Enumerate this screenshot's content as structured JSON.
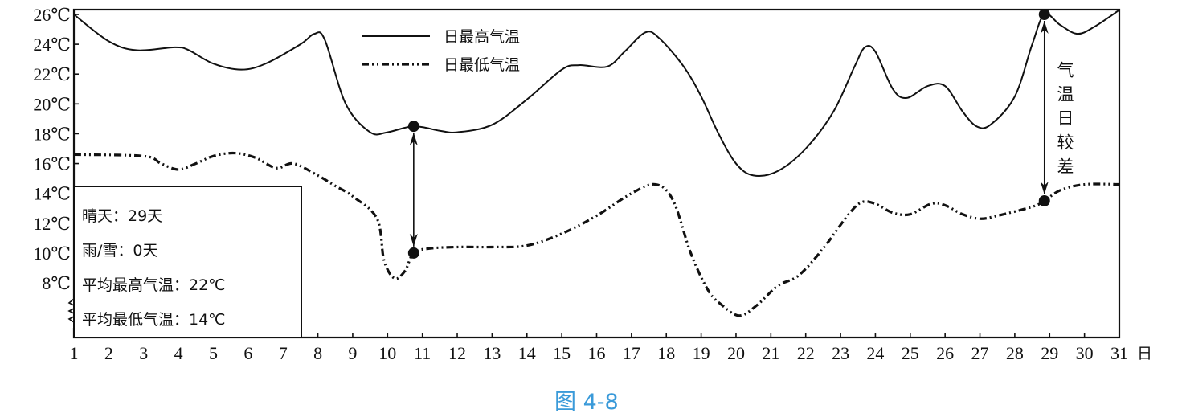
{
  "chart_data": {
    "type": "line",
    "caption": "图 4-8",
    "xlabel_unit": "日",
    "x_ticks": [
      "1",
      "2",
      "3",
      "4",
      "5",
      "6",
      "7",
      "8",
      "9",
      "10",
      "11",
      "12",
      "13",
      "14",
      "15",
      "16",
      "17",
      "18",
      "19",
      "20",
      "21",
      "22",
      "23",
      "24",
      "25",
      "26",
      "27",
      "28",
      "29",
      "30",
      "31"
    ],
    "y_ticks": [
      "26℃",
      "24℃",
      "22℃",
      "20℃",
      "18℃",
      "16℃",
      "14℃",
      "12℃",
      "10℃",
      "8℃"
    ],
    "y_tick_values": [
      26,
      24,
      22,
      20,
      18,
      16,
      14,
      12,
      10,
      8
    ],
    "xlim": [
      1,
      31
    ],
    "ylim": [
      6.2,
      26
    ],
    "legend_position": "top-center",
    "series": [
      {
        "name": "日最高气温",
        "style": "solid",
        "points": [
          [
            1,
            26
          ],
          [
            2,
            24.2
          ],
          [
            2.8,
            23.6
          ],
          [
            3.9,
            23.8
          ],
          [
            4.3,
            23.6
          ],
          [
            5,
            22.7
          ],
          [
            5.8,
            22.3
          ],
          [
            6.5,
            22.7
          ],
          [
            7.5,
            24
          ],
          [
            7.9,
            24.7
          ],
          [
            8.2,
            24.3
          ],
          [
            8.8,
            20
          ],
          [
            9.5,
            18.1
          ],
          [
            10,
            18.1
          ],
          [
            10.75,
            18.5
          ],
          [
            11.5,
            18.2
          ],
          [
            12,
            18.1
          ],
          [
            13,
            18.6
          ],
          [
            14,
            20.3
          ],
          [
            15,
            22.3
          ],
          [
            15.5,
            22.6
          ],
          [
            16.3,
            22.5
          ],
          [
            16.8,
            23.5
          ],
          [
            17.4,
            24.8
          ],
          [
            17.8,
            24.4
          ],
          [
            18.5,
            22.5
          ],
          [
            19,
            20.5
          ],
          [
            19.5,
            18
          ],
          [
            20,
            16
          ],
          [
            20.5,
            15.2
          ],
          [
            21.2,
            15.5
          ],
          [
            22,
            17
          ],
          [
            22.8,
            19.5
          ],
          [
            23.4,
            22.5
          ],
          [
            23.7,
            23.8
          ],
          [
            24,
            23.5
          ],
          [
            24.5,
            21
          ],
          [
            24.9,
            20.4
          ],
          [
            25.5,
            21.2
          ],
          [
            26,
            21.2
          ],
          [
            26.5,
            19.5
          ],
          [
            26.9,
            18.5
          ],
          [
            27.3,
            18.6
          ],
          [
            28,
            20.5
          ],
          [
            28.5,
            24
          ],
          [
            28.85,
            26
          ],
          [
            29.3,
            25.3
          ],
          [
            29.8,
            24.7
          ],
          [
            30.3,
            25.2
          ],
          [
            31,
            26.3
          ]
        ]
      },
      {
        "name": "日最低气温",
        "style": "dash-dot-dot",
        "points": [
          [
            1,
            16.6
          ],
          [
            3,
            16.5
          ],
          [
            3.5,
            16
          ],
          [
            4,
            15.6
          ],
          [
            4.5,
            16
          ],
          [
            5,
            16.5
          ],
          [
            5.6,
            16.7
          ],
          [
            6.2,
            16.4
          ],
          [
            6.8,
            15.7
          ],
          [
            7.3,
            16
          ],
          [
            8,
            15.2
          ],
          [
            8.5,
            14.5
          ],
          [
            9,
            13.8
          ],
          [
            9.7,
            12.3
          ],
          [
            9.9,
            9.5
          ],
          [
            10.2,
            8.3
          ],
          [
            10.5,
            8.8
          ],
          [
            10.75,
            10
          ],
          [
            11.2,
            10.3
          ],
          [
            12,
            10.4
          ],
          [
            13,
            10.4
          ],
          [
            14,
            10.5
          ],
          [
            15,
            11.3
          ],
          [
            16,
            12.5
          ],
          [
            17,
            14
          ],
          [
            17.7,
            14.6
          ],
          [
            18.2,
            13.5
          ],
          [
            18.7,
            10
          ],
          [
            19.2,
            7.5
          ],
          [
            19.6,
            6.5
          ],
          [
            20.1,
            5.8
          ],
          [
            20.6,
            6.5
          ],
          [
            21.2,
            7.8
          ],
          [
            21.8,
            8.5
          ],
          [
            22.5,
            10.3
          ],
          [
            23.2,
            12.5
          ],
          [
            23.6,
            13.4
          ],
          [
            24,
            13.3
          ],
          [
            24.5,
            12.7
          ],
          [
            25,
            12.6
          ],
          [
            25.6,
            13.3
          ],
          [
            26,
            13.2
          ],
          [
            26.5,
            12.6
          ],
          [
            27,
            12.3
          ],
          [
            27.5,
            12.5
          ],
          [
            28.5,
            13.1
          ],
          [
            28.85,
            13.5
          ],
          [
            29.3,
            14.2
          ],
          [
            30,
            14.6
          ],
          [
            31,
            14.6
          ]
        ]
      }
    ],
    "markers": [
      [
        10.75,
        18.5
      ],
      [
        10.75,
        10
      ],
      [
        28.85,
        26
      ],
      [
        28.85,
        13.5
      ]
    ],
    "range_arrows": [
      {
        "x": 10.75,
        "from": 18.5,
        "to": 10
      },
      {
        "x": 28.85,
        "from": 26,
        "to": 13.5
      }
    ],
    "annotation": "气温日较差",
    "annotation_chars": [
      "气",
      "温",
      "日",
      "较",
      "差"
    ],
    "stats_box": [
      "晴天：29天",
      "雨/雪：0天",
      "平均最高气温：22℃",
      "平均最低气温：14℃"
    ]
  }
}
